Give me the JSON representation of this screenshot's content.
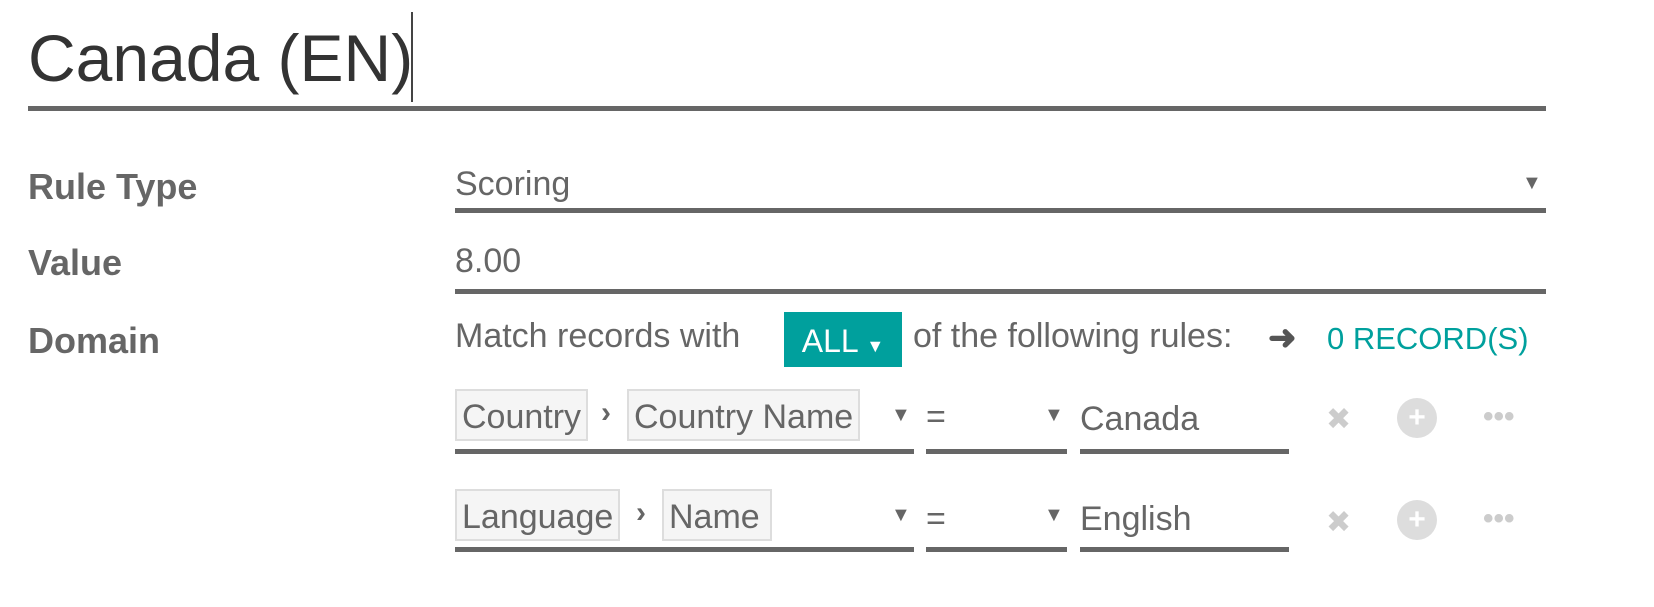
{
  "title": "Canada (EN)",
  "fields": {
    "rule_type": {
      "label": "Rule Type",
      "value": "Scoring"
    },
    "value": {
      "label": "Value",
      "value": "8.00"
    },
    "domain": {
      "label": "Domain",
      "prefix": "Match records with",
      "selector": "ALL",
      "suffix": "of the following rules:",
      "records": "0 RECORD(S)"
    }
  },
  "rules": [
    {
      "path": [
        "Country",
        "Country Name"
      ],
      "operator": "=",
      "value": "Canada"
    },
    {
      "path": [
        "Language",
        "Name"
      ],
      "operator": "=",
      "value": "English"
    }
  ],
  "colors": {
    "accent": "#00a09d",
    "text": "#666666"
  }
}
